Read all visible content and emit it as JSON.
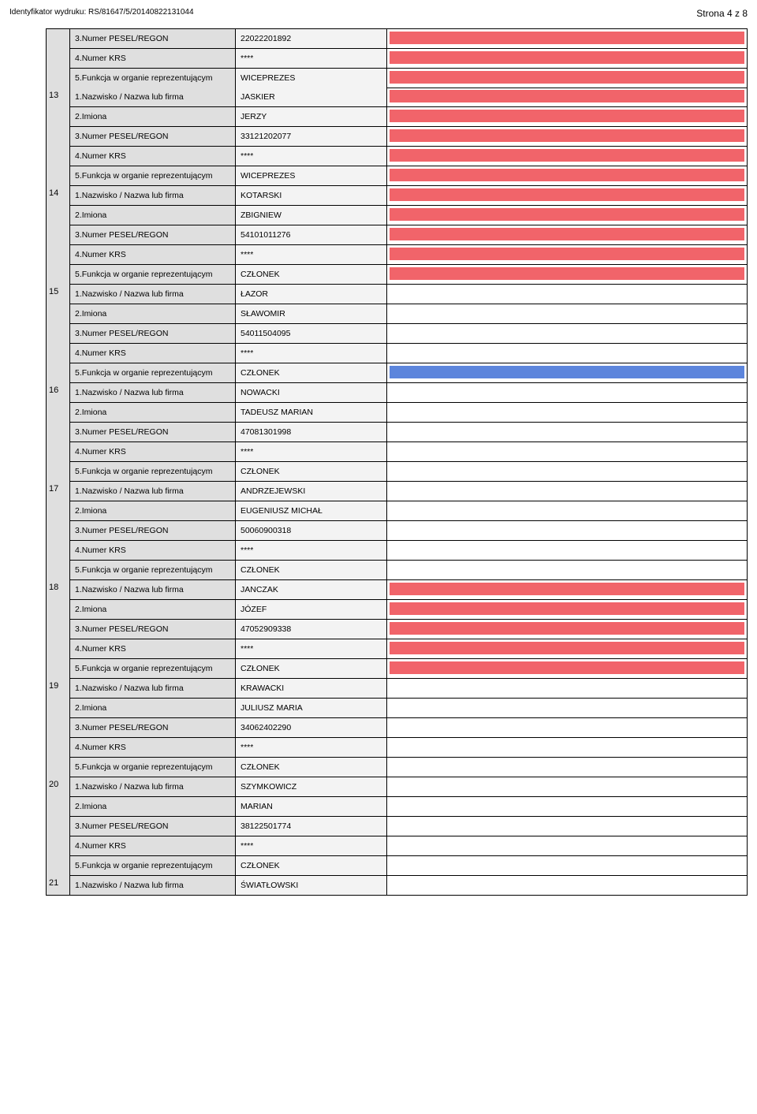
{
  "header": {
    "identifier_label": "Identyfikator wydruku:",
    "identifier_value": "RS/81647/5/20140822131044",
    "page_label": "Strona 4 z 8"
  },
  "colors": {
    "red_bar": "#f1646a",
    "blue_bar": "#5c85dc",
    "label_bg": "#dfdfdf",
    "value_bg": "#f3f3f3"
  },
  "labels": {
    "pesel": "3.Numer PESEL/REGON",
    "krs": "4.Numer KRS",
    "funkcja": "5.Funkcja w organie reprezentującym",
    "nazwisko": "1.Nazwisko / Nazwa lub firma",
    "imiona": "2.Imiona"
  },
  "pre_rows": [
    {
      "label_key": "pesel",
      "value": "22022201892",
      "bar": "red"
    },
    {
      "label_key": "krs",
      "value": "****",
      "bar": "red"
    },
    {
      "label_key": "funkcja",
      "value": "WICEPREZES",
      "bar": "red"
    }
  ],
  "entries": [
    {
      "num": "13",
      "rows": [
        {
          "label_key": "nazwisko",
          "value": "JASKIER",
          "bar": "red"
        },
        {
          "label_key": "imiona",
          "value": "JERZY",
          "bar": "red"
        },
        {
          "label_key": "pesel",
          "value": "33121202077",
          "bar": "red"
        },
        {
          "label_key": "krs",
          "value": "****",
          "bar": "red"
        },
        {
          "label_key": "funkcja",
          "value": "WICEPREZES",
          "bar": "red"
        }
      ]
    },
    {
      "num": "14",
      "rows": [
        {
          "label_key": "nazwisko",
          "value": "KOTARSKI",
          "bar": "red"
        },
        {
          "label_key": "imiona",
          "value": "ZBIGNIEW",
          "bar": "red"
        },
        {
          "label_key": "pesel",
          "value": "54101011276",
          "bar": "red"
        },
        {
          "label_key": "krs",
          "value": "****",
          "bar": "red"
        },
        {
          "label_key": "funkcja",
          "value": "CZŁONEK",
          "bar": "red"
        }
      ]
    },
    {
      "num": "15",
      "rows": [
        {
          "label_key": "nazwisko",
          "value": "ŁAZOR",
          "bar": null
        },
        {
          "label_key": "imiona",
          "value": "SŁAWOMIR",
          "bar": null
        },
        {
          "label_key": "pesel",
          "value": "54011504095",
          "bar": null
        },
        {
          "label_key": "krs",
          "value": "****",
          "bar": null
        },
        {
          "label_key": "funkcja",
          "value": "CZŁONEK",
          "bar": "blue"
        }
      ]
    },
    {
      "num": "16",
      "rows": [
        {
          "label_key": "nazwisko",
          "value": "NOWACKI",
          "bar": null
        },
        {
          "label_key": "imiona",
          "value": "TADEUSZ MARIAN",
          "bar": null
        },
        {
          "label_key": "pesel",
          "value": "47081301998",
          "bar": null
        },
        {
          "label_key": "krs",
          "value": "****",
          "bar": null
        },
        {
          "label_key": "funkcja",
          "value": "CZŁONEK",
          "bar": null
        }
      ]
    },
    {
      "num": "17",
      "rows": [
        {
          "label_key": "nazwisko",
          "value": "ANDRZEJEWSKI",
          "bar": null
        },
        {
          "label_key": "imiona",
          "value": "EUGENIUSZ MICHAŁ",
          "bar": null
        },
        {
          "label_key": "pesel",
          "value": "50060900318",
          "bar": null
        },
        {
          "label_key": "krs",
          "value": "****",
          "bar": null
        },
        {
          "label_key": "funkcja",
          "value": "CZŁONEK",
          "bar": null
        }
      ]
    },
    {
      "num": "18",
      "rows": [
        {
          "label_key": "nazwisko",
          "value": "JANCZAK",
          "bar": "red"
        },
        {
          "label_key": "imiona",
          "value": "JÓZEF",
          "bar": "red"
        },
        {
          "label_key": "pesel",
          "value": "47052909338",
          "bar": "red"
        },
        {
          "label_key": "krs",
          "value": "****",
          "bar": "red"
        },
        {
          "label_key": "funkcja",
          "value": "CZŁONEK",
          "bar": "red"
        }
      ]
    },
    {
      "num": "19",
      "rows": [
        {
          "label_key": "nazwisko",
          "value": "KRAWACKI",
          "bar": null
        },
        {
          "label_key": "imiona",
          "value": "JULIUSZ MARIA",
          "bar": null
        },
        {
          "label_key": "pesel",
          "value": "34062402290",
          "bar": null
        },
        {
          "label_key": "krs",
          "value": "****",
          "bar": null
        },
        {
          "label_key": "funkcja",
          "value": "CZŁONEK",
          "bar": null
        }
      ]
    },
    {
      "num": "20",
      "rows": [
        {
          "label_key": "nazwisko",
          "value": "SZYMKOWICZ",
          "bar": null
        },
        {
          "label_key": "imiona",
          "value": "MARIAN",
          "bar": null
        },
        {
          "label_key": "pesel",
          "value": "38122501774",
          "bar": null
        },
        {
          "label_key": "krs",
          "value": "****",
          "bar": null
        },
        {
          "label_key": "funkcja",
          "value": "CZŁONEK",
          "bar": null
        }
      ]
    },
    {
      "num": "21",
      "rows": [
        {
          "label_key": "nazwisko",
          "value": "ŚWIATŁOWSKI",
          "bar": null
        }
      ]
    }
  ]
}
